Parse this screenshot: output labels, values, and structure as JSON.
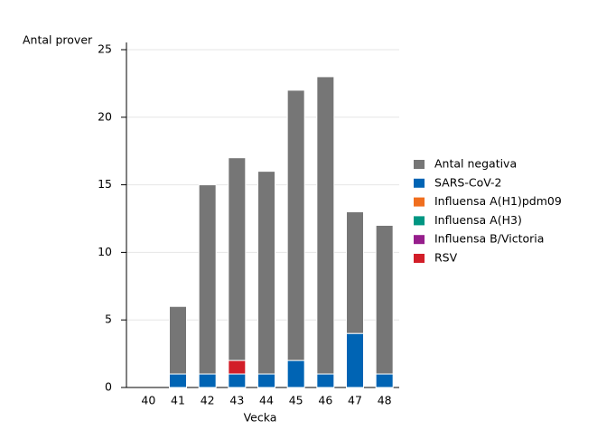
{
  "chart_data": {
    "type": "stacked-bar",
    "y_label": "Antal prover",
    "x_label": "Vecka",
    "categories": [
      "40",
      "41",
      "42",
      "43",
      "44",
      "45",
      "46",
      "47",
      "48"
    ],
    "series": [
      {
        "name": "Antal negativa",
        "color": "#767676",
        "values": [
          0,
          5,
          14,
          15,
          15,
          20,
          22,
          9,
          11
        ]
      },
      {
        "name": "SARS-CoV-2",
        "color": "#0064b4",
        "values": [
          0,
          1,
          1,
          1,
          1,
          2,
          1,
          4,
          1
        ]
      },
      {
        "name": "Influensa A(H1)pdm09",
        "color": "#f06e1e",
        "values": [
          0,
          0,
          0,
          0,
          0,
          0,
          0,
          0,
          0
        ]
      },
      {
        "name": "Influensa A(H3)",
        "color": "#009682",
        "values": [
          0,
          0,
          0,
          0,
          0,
          0,
          0,
          0,
          0
        ]
      },
      {
        "name": "Influensa B/Victoria",
        "color": "#961e8c",
        "values": [
          0,
          0,
          0,
          0,
          0,
          0,
          0,
          0,
          0
        ]
      },
      {
        "name": "RSV",
        "color": "#d21e28",
        "values": [
          0,
          0,
          0,
          1,
          0,
          0,
          0,
          0,
          0
        ]
      }
    ],
    "ylim": [
      0,
      25
    ],
    "yticks": [
      0,
      5,
      10,
      15,
      20,
      25
    ],
    "grid": true,
    "legend": "right"
  }
}
